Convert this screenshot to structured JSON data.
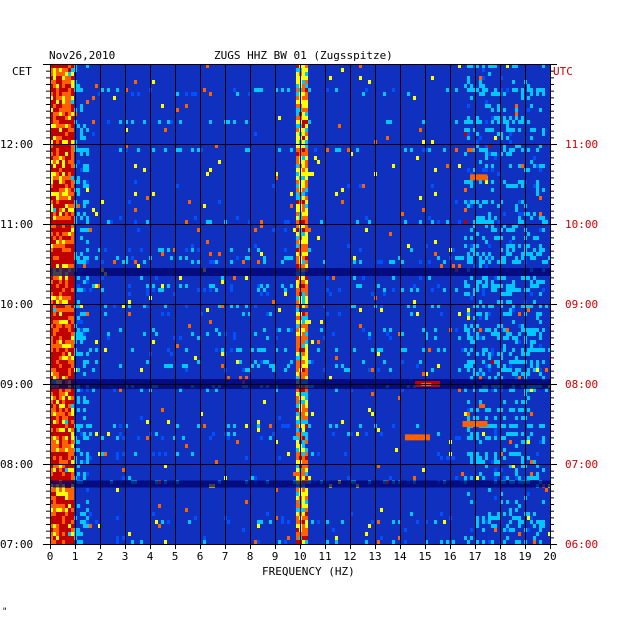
{
  "header": {
    "date": "Nov26,2010",
    "station_title": "ZUGS HHZ BW 01 (Zugsspitze)",
    "left_zone": "CET",
    "right_zone": "UTC"
  },
  "mark": "\"",
  "chart_data": {
    "type": "heatmap",
    "title": "ZUGS HHZ BW 01 (Zugsspitze)",
    "date": "Nov26,2010",
    "xlabel": "FREQUENCY (HZ)",
    "x_ticks": [
      "0",
      "1",
      "2",
      "3",
      "4",
      "5",
      "6",
      "7",
      "8",
      "9",
      "10",
      "11",
      "12",
      "13",
      "14",
      "15",
      "16",
      "17",
      "18",
      "19",
      "20"
    ],
    "xlim": [
      0,
      20
    ],
    "y_left_label": "CET",
    "y_left_ticks": [
      "07:00",
      "08:00",
      "09:00",
      "10:00",
      "11:00",
      "12:00"
    ],
    "y_right_label": "UTC",
    "y_right_ticks": [
      "06:00",
      "07:00",
      "08:00",
      "09:00",
      "10:00",
      "11:00"
    ],
    "time_range_cet": [
      "07:00",
      "13:00"
    ],
    "grid": true,
    "colormap": [
      "#000070",
      "#0000c8",
      "#0050ff",
      "#00c8ff",
      "#ffff00",
      "#ff6000",
      "#c00000"
    ],
    "background_level_color": "#1030c0",
    "features": [
      {
        "description": "strong band",
        "freq_range_hz": [
          0.1,
          0.8
        ],
        "intensity": 0.9
      },
      {
        "description": "persistent line",
        "freq_hz": 9.9,
        "intensity": 0.75
      },
      {
        "description": "persistent line",
        "freq_hz": 10.1,
        "intensity": 0.65
      },
      {
        "description": "transient burst",
        "freq_range_hz": [
          14.6,
          15.6
        ],
        "time_cet": "09:00",
        "intensity": 0.9
      },
      {
        "description": "transient burst",
        "freq_range_hz": [
          14.2,
          15.2
        ],
        "time_cet": "08:20",
        "intensity": 0.85
      },
      {
        "description": "transient burst",
        "freq_range_hz": [
          16.8,
          17.5
        ],
        "time_cet": "11:35",
        "intensity": 0.8
      },
      {
        "description": "transient burst",
        "freq_range_hz": [
          16.5,
          17.5
        ],
        "time_cet": "08:30",
        "intensity": 0.8
      }
    ]
  }
}
